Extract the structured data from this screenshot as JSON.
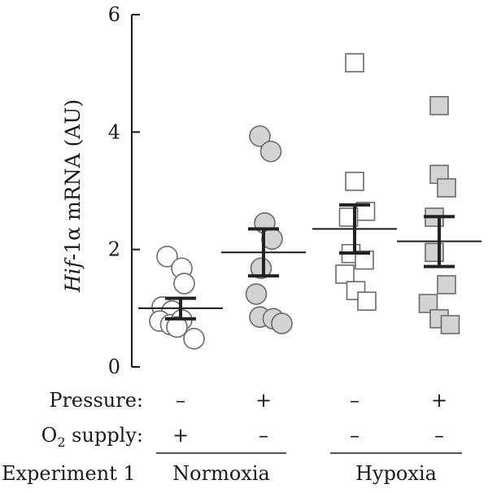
{
  "chart_data": {
    "type": "scatter",
    "ylabel": {
      "prefix": "Hif",
      "suffix": "-1α mRNA (AU)"
    },
    "ylim": [
      0,
      6
    ],
    "yticks": [
      0,
      2,
      4,
      6
    ],
    "grid": false,
    "rows": [
      {
        "label": "Pressure:",
        "values": [
          "–",
          "+",
          "–",
          "+"
        ]
      },
      {
        "label_main": "O",
        "label_sub": "2",
        "label_rest": " supply:",
        "values": [
          "+",
          "–",
          "–",
          "–"
        ]
      }
    ],
    "experiment_label": "Experiment 1",
    "condition_groups": [
      {
        "label": "Normoxia",
        "columns": [
          0,
          1
        ]
      },
      {
        "label": "Hypoxia",
        "columns": [
          2,
          3
        ]
      }
    ],
    "series": [
      {
        "marker": "circle",
        "fill": "#ffffff",
        "points": [
          {
            "dx": -0.55,
            "y": 1.88
          },
          {
            "dx": 0.05,
            "y": 1.68
          },
          {
            "dx": 0.15,
            "y": 1.42
          },
          {
            "dx": -0.75,
            "y": 1.02
          },
          {
            "dx": -0.35,
            "y": 0.95
          },
          {
            "dx": -0.85,
            "y": 0.78
          },
          {
            "dx": -0.4,
            "y": 0.72
          },
          {
            "dx": 0.05,
            "y": 0.8
          },
          {
            "dx": -0.15,
            "y": 0.68
          },
          {
            "dx": 0.55,
            "y": 0.48
          }
        ],
        "mean": 1.0,
        "sem_low": 0.82,
        "sem_high": 1.17
      },
      {
        "marker": "circle",
        "fill": "#d3d3d3",
        "points": [
          {
            "dx": -0.15,
            "y": 3.93
          },
          {
            "dx": 0.3,
            "y": 3.67
          },
          {
            "dx": 0.05,
            "y": 2.45
          },
          {
            "dx": 0.35,
            "y": 2.18
          },
          {
            "dx": -0.1,
            "y": 1.68
          },
          {
            "dx": -0.3,
            "y": 1.24
          },
          {
            "dx": -0.15,
            "y": 0.85
          },
          {
            "dx": 0.4,
            "y": 0.82
          },
          {
            "dx": 0.75,
            "y": 0.74
          }
        ],
        "mean": 1.95,
        "sem_low": 1.55,
        "sem_high": 2.35
      },
      {
        "marker": "square",
        "fill": "#ffffff",
        "points": [
          {
            "dx": 0.0,
            "y": 5.18
          },
          {
            "dx": 0.0,
            "y": 3.16
          },
          {
            "dx": 0.45,
            "y": 2.65
          },
          {
            "dx": -0.25,
            "y": 2.55
          },
          {
            "dx": -0.15,
            "y": 1.93
          },
          {
            "dx": 0.4,
            "y": 1.82
          },
          {
            "dx": -0.4,
            "y": 1.58
          },
          {
            "dx": 0.05,
            "y": 1.3
          },
          {
            "dx": 0.5,
            "y": 1.12
          }
        ],
        "mean": 2.35,
        "sem_low": 1.94,
        "sem_high": 2.76
      },
      {
        "marker": "square",
        "fill": "#d3d3d3",
        "points": [
          {
            "dx": 0.0,
            "y": 4.45
          },
          {
            "dx": 0.0,
            "y": 3.28
          },
          {
            "dx": 0.3,
            "y": 3.05
          },
          {
            "dx": -0.2,
            "y": 2.55
          },
          {
            "dx": -0.2,
            "y": 1.95
          },
          {
            "dx": 0.3,
            "y": 1.4
          },
          {
            "dx": -0.45,
            "y": 1.08
          },
          {
            "dx": 0.0,
            "y": 0.82
          },
          {
            "dx": 0.45,
            "y": 0.72
          }
        ],
        "mean": 2.14,
        "sem_low": 1.71,
        "sem_high": 2.56
      }
    ]
  }
}
